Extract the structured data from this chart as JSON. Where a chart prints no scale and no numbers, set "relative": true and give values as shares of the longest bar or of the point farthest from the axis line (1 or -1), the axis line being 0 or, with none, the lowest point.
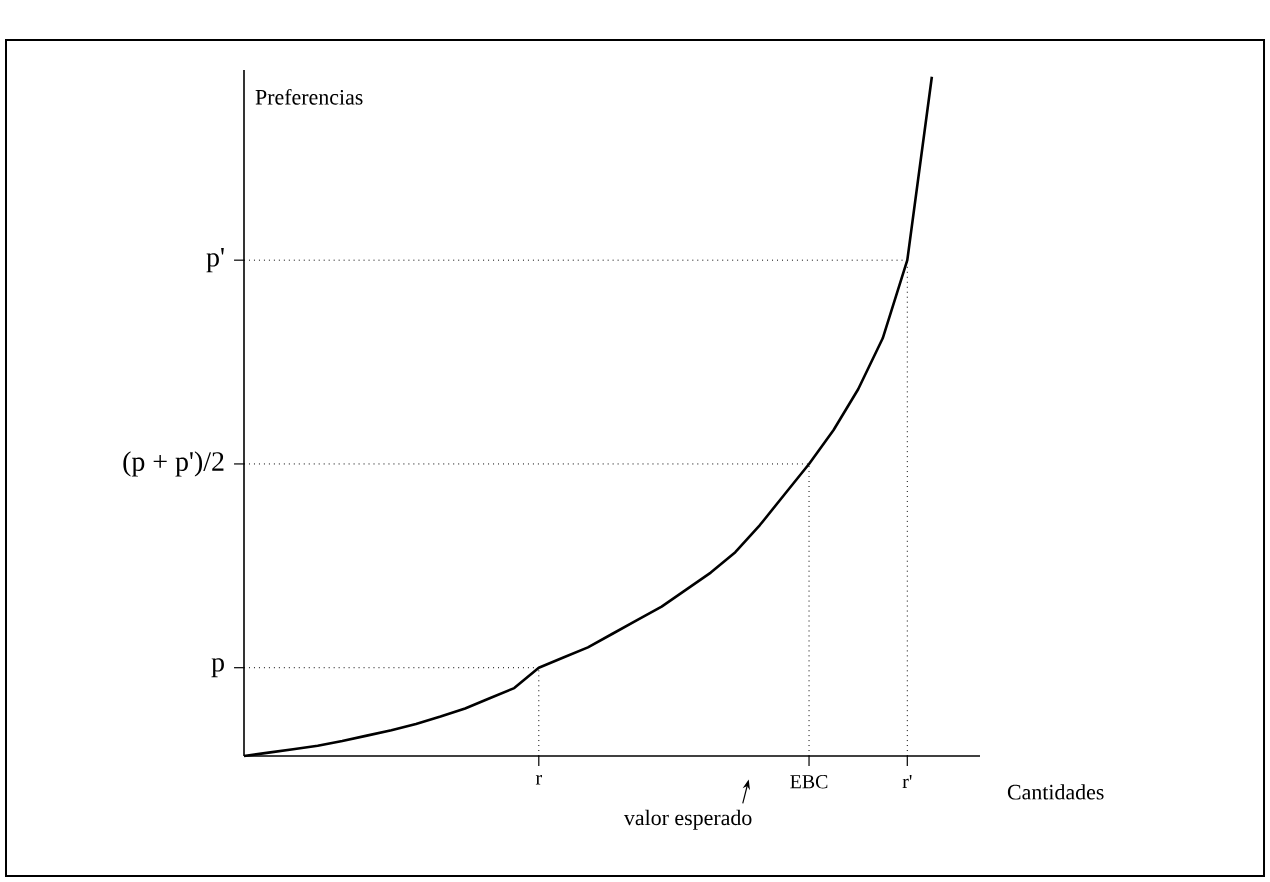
{
  "chart_data": {
    "type": "line",
    "xlabel": "Cantidades",
    "ylabel": "Preferencias",
    "relative": true,
    "marker": "none",
    "line_style": "solid",
    "color": "#000000",
    "categories": [
      null,
      null,
      null,
      null,
      null,
      null,
      null,
      null,
      null,
      null,
      null,
      null,
      "r",
      null,
      null,
      null,
      null,
      null,
      null,
      null,
      null,
      null,
      null,
      "EBC",
      null,
      null,
      null,
      "r'",
      null
    ],
    "values": [
      0,
      0.005,
      0.01,
      0.015,
      0.022,
      0.03,
      0.038,
      0.047,
      0.058,
      0.07,
      0.085,
      0.1,
      0.13,
      0.145,
      0.16,
      0.18,
      0.2,
      0.22,
      0.245,
      0.27,
      0.3,
      0.34,
      0.385,
      0.43,
      0.48,
      0.54,
      0.615,
      0.73,
      1
    ],
    "ref_lines": [
      {
        "axis": "y",
        "value": 0.13,
        "label": "p",
        "line_style": "dotted"
      },
      {
        "axis": "y",
        "value": 0.43,
        "label": "(p + p')/2",
        "line_style": "dotted"
      },
      {
        "axis": "y",
        "value": 0.73,
        "label": "p'",
        "line_style": "dotted"
      },
      {
        "axis": "x",
        "value": "r",
        "line_style": "dotted"
      },
      {
        "axis": "x",
        "value": "EBC",
        "line_style": "dotted"
      },
      {
        "axis": "x",
        "value": "r'",
        "line_style": "dotted"
      }
    ],
    "annotations": [
      "valor esperado"
    ]
  }
}
